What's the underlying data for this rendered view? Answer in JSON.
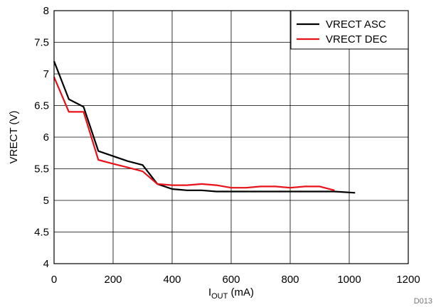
{
  "chart_data": {
    "type": "line",
    "xlabel_main": "I",
    "xlabel_sub": "OUT",
    "xlabel_unit": " (mA)",
    "ylabel": "VRECT (V)",
    "xlim": [
      0,
      1200
    ],
    "ylim": [
      4,
      8
    ],
    "xticks": [
      0,
      200,
      400,
      600,
      800,
      1000,
      1200
    ],
    "yticks": [
      4,
      4.5,
      5,
      5.5,
      6,
      6.5,
      7,
      7.5,
      8
    ],
    "ytick_labels": [
      "4",
      "4.5",
      "5",
      "5.5",
      "6",
      "6.5",
      "7",
      "7.5",
      "8"
    ],
    "grid": true,
    "legend_position": "top-right",
    "series": [
      {
        "name": "VRECT ASC",
        "color": "#000000",
        "x": [
          0,
          50,
          100,
          150,
          200,
          250,
          300,
          350,
          400,
          450,
          500,
          550,
          600,
          650,
          700,
          750,
          800,
          850,
          900,
          950,
          1020
        ],
        "y": [
          7.2,
          6.6,
          6.48,
          5.78,
          5.7,
          5.62,
          5.56,
          5.26,
          5.18,
          5.16,
          5.16,
          5.14,
          5.14,
          5.14,
          5.14,
          5.14,
          5.14,
          5.14,
          5.14,
          5.14,
          5.12
        ]
      },
      {
        "name": "VRECT DEC",
        "color": "#e8111a",
        "x": [
          0,
          50,
          100,
          150,
          200,
          250,
          300,
          350,
          400,
          450,
          500,
          550,
          600,
          650,
          700,
          750,
          800,
          850,
          900,
          950
        ],
        "y": [
          6.95,
          6.4,
          6.4,
          5.64,
          5.58,
          5.52,
          5.46,
          5.26,
          5.24,
          5.24,
          5.26,
          5.24,
          5.2,
          5.2,
          5.22,
          5.22,
          5.2,
          5.22,
          5.22,
          5.16
        ]
      }
    ],
    "note": "D013"
  }
}
